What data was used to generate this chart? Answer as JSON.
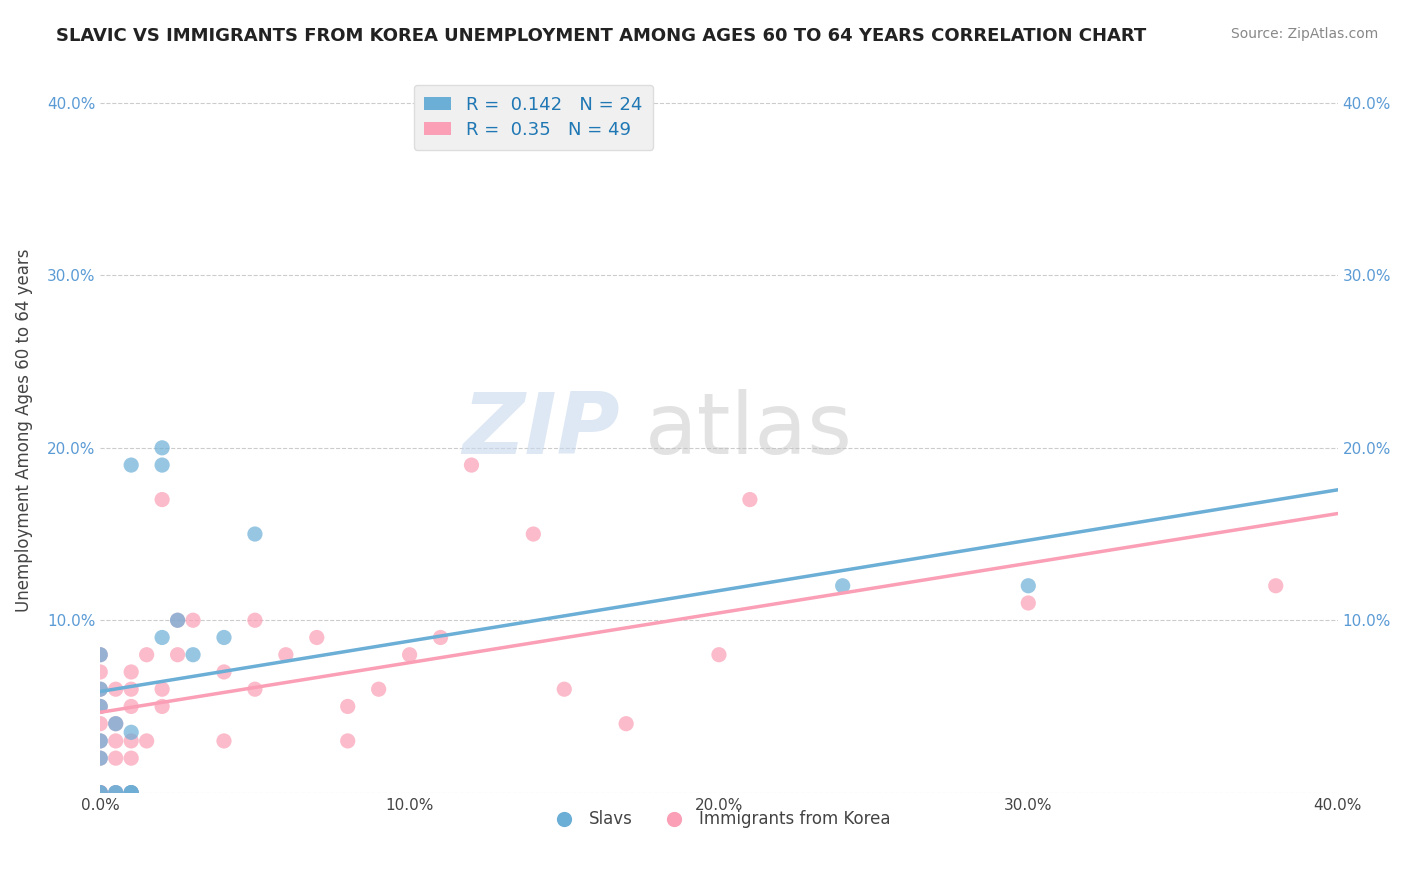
{
  "title": "SLAVIC VS IMMIGRANTS FROM KOREA UNEMPLOYMENT AMONG AGES 60 TO 64 YEARS CORRELATION CHART",
  "source": "Source: ZipAtlas.com",
  "xlabel": "",
  "ylabel": "Unemployment Among Ages 60 to 64 years",
  "xlim": [
    0.0,
    0.4
  ],
  "ylim": [
    0.0,
    0.42
  ],
  "x_ticks": [
    0.0,
    0.1,
    0.2,
    0.3,
    0.4
  ],
  "x_tick_labels": [
    "0.0%",
    "10.0%",
    "20.0%",
    "30.0%",
    "40.0%"
  ],
  "y_ticks": [
    0.0,
    0.1,
    0.2,
    0.3,
    0.4
  ],
  "y_tick_labels": [
    "",
    "10.0%",
    "20.0%",
    "30.0%",
    "40.0%"
  ],
  "slavs_color": "#6baed6",
  "korea_color": "#fa9fb5",
  "slavs_R": 0.142,
  "slavs_N": 24,
  "korea_R": 0.35,
  "korea_N": 49,
  "legend_text_color": "#1f77b4",
  "slavs_x": [
    0.0,
    0.0,
    0.0,
    0.0,
    0.0,
    0.0,
    0.0,
    0.005,
    0.005,
    0.005,
    0.01,
    0.01,
    0.01,
    0.01,
    0.01,
    0.02,
    0.02,
    0.02,
    0.025,
    0.03,
    0.04,
    0.05,
    0.24,
    0.3
  ],
  "slavs_y": [
    0.0,
    0.0,
    0.02,
    0.03,
    0.05,
    0.06,
    0.08,
    0.0,
    0.0,
    0.04,
    0.0,
    0.0,
    0.0,
    0.035,
    0.19,
    0.19,
    0.2,
    0.09,
    0.1,
    0.08,
    0.09,
    0.15,
    0.12,
    0.12
  ],
  "korea_x": [
    0.0,
    0.0,
    0.0,
    0.0,
    0.0,
    0.0,
    0.0,
    0.0,
    0.0,
    0.0,
    0.0,
    0.005,
    0.005,
    0.005,
    0.005,
    0.005,
    0.01,
    0.01,
    0.01,
    0.01,
    0.01,
    0.01,
    0.015,
    0.015,
    0.02,
    0.02,
    0.02,
    0.025,
    0.025,
    0.03,
    0.04,
    0.04,
    0.05,
    0.05,
    0.06,
    0.07,
    0.08,
    0.08,
    0.09,
    0.1,
    0.11,
    0.12,
    0.14,
    0.15,
    0.17,
    0.2,
    0.21,
    0.3,
    0.38
  ],
  "korea_y": [
    0.0,
    0.0,
    0.0,
    0.0,
    0.02,
    0.03,
    0.04,
    0.05,
    0.06,
    0.07,
    0.08,
    0.0,
    0.02,
    0.03,
    0.04,
    0.06,
    0.0,
    0.02,
    0.03,
    0.05,
    0.06,
    0.07,
    0.03,
    0.08,
    0.05,
    0.06,
    0.17,
    0.08,
    0.1,
    0.1,
    0.03,
    0.07,
    0.1,
    0.06,
    0.08,
    0.09,
    0.05,
    0.03,
    0.06,
    0.08,
    0.09,
    0.19,
    0.15,
    0.06,
    0.04,
    0.08,
    0.17,
    0.11,
    0.12
  ],
  "background_color": "#ffffff",
  "grid_color": "#cccccc"
}
